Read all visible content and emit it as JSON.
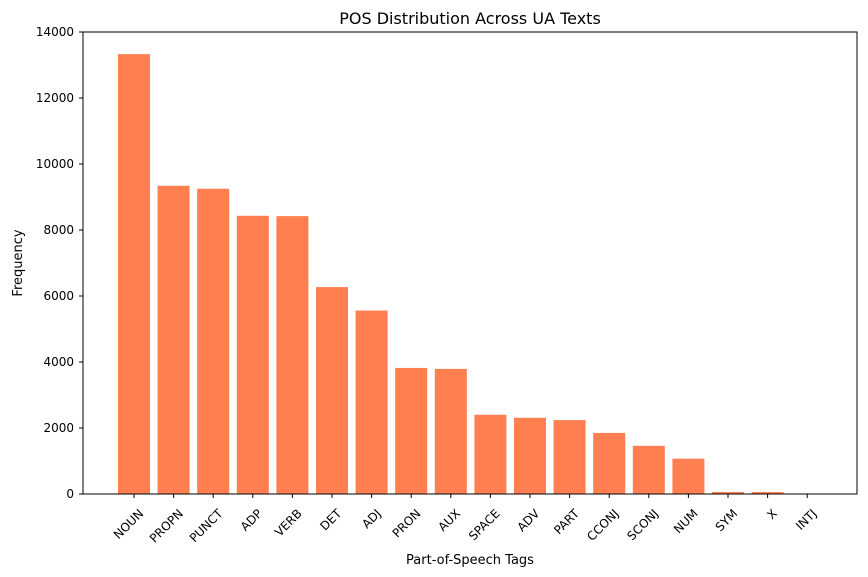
{
  "chart_data": {
    "type": "bar",
    "title": "POS Distribution Across UA Texts",
    "xlabel": "Part-of-Speech Tags",
    "ylabel": "Frequency",
    "categories": [
      "NOUN",
      "PROPN",
      "PUNCT",
      "ADP",
      "VERB",
      "DET",
      "ADJ",
      "PRON",
      "AUX",
      "SPACE",
      "ADV",
      "PART",
      "CCONJ",
      "SCONJ",
      "NUM",
      "SYM",
      "X",
      "INTJ"
    ],
    "values": [
      13330,
      9340,
      9250,
      8430,
      8420,
      6270,
      5560,
      3820,
      3790,
      2400,
      2310,
      2240,
      1850,
      1460,
      1070,
      60,
      60,
      10
    ],
    "ylim": [
      0,
      14000
    ],
    "yticks": [
      0,
      2000,
      4000,
      6000,
      8000,
      10000,
      12000,
      14000
    ],
    "bar_color": "#ff7f50",
    "grid": false,
    "legend": "none"
  }
}
